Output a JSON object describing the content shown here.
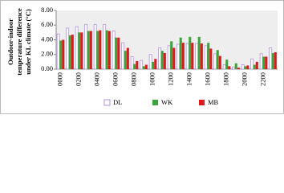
{
  "chart_data": {
    "type": "bar",
    "ylabel": [
      "Outdoor-indoor",
      "temperature difference",
      "under KL climate (°C)"
    ],
    "categories": [
      "0000",
      null,
      "0200",
      null,
      "0400",
      null,
      "0600",
      null,
      "0800",
      null,
      "1000",
      null,
      "1200",
      null,
      "1400",
      null,
      "1600",
      null,
      "1800",
      null,
      "2000",
      null,
      "2200",
      null
    ],
    "series": [
      {
        "name": "DL",
        "color": "#ffffff",
        "stroke": "#b48fe0",
        "values": [
          4.8,
          5.6,
          5.8,
          6.1,
          6.1,
          6.1,
          5.2,
          3.6,
          1.7,
          1.2,
          2.0,
          2.9,
          3.2,
          3.4,
          3.5,
          3.5,
          3.2,
          2.1,
          0.6,
          0.3,
          0.6,
          1.4,
          2.1,
          2.9
        ]
      },
      {
        "name": "WK",
        "color": "#3aa53a",
        "values": [
          3.9,
          4.6,
          5.0,
          5.2,
          5.2,
          5.3,
          4.3,
          2.5,
          0.7,
          0.4,
          1.0,
          2.5,
          3.8,
          4.3,
          4.4,
          4.4,
          3.6,
          2.6,
          1.3,
          0.8,
          0.4,
          0.6,
          1.7,
          2.2
        ]
      },
      {
        "name": "MB",
        "color": "#e0181b",
        "values": [
          4.0,
          4.7,
          5.0,
          5.2,
          5.3,
          5.2,
          4.3,
          2.9,
          1.1,
          0.6,
          1.4,
          2.2,
          2.9,
          3.6,
          3.6,
          3.5,
          2.8,
          1.8,
          0.4,
          0.2,
          0.5,
          1.0,
          1.7,
          2.3
        ]
      }
    ],
    "ylim": [
      0,
      8
    ],
    "yticks": [
      {
        "value": 0,
        "label": "0.00"
      },
      {
        "value": 2,
        "label": "2.00"
      },
      {
        "value": 4,
        "label": "4.00"
      },
      {
        "value": 6,
        "label": "6.00"
      },
      {
        "value": 8,
        "label": "8.00"
      }
    ],
    "legend": "bottom"
  }
}
